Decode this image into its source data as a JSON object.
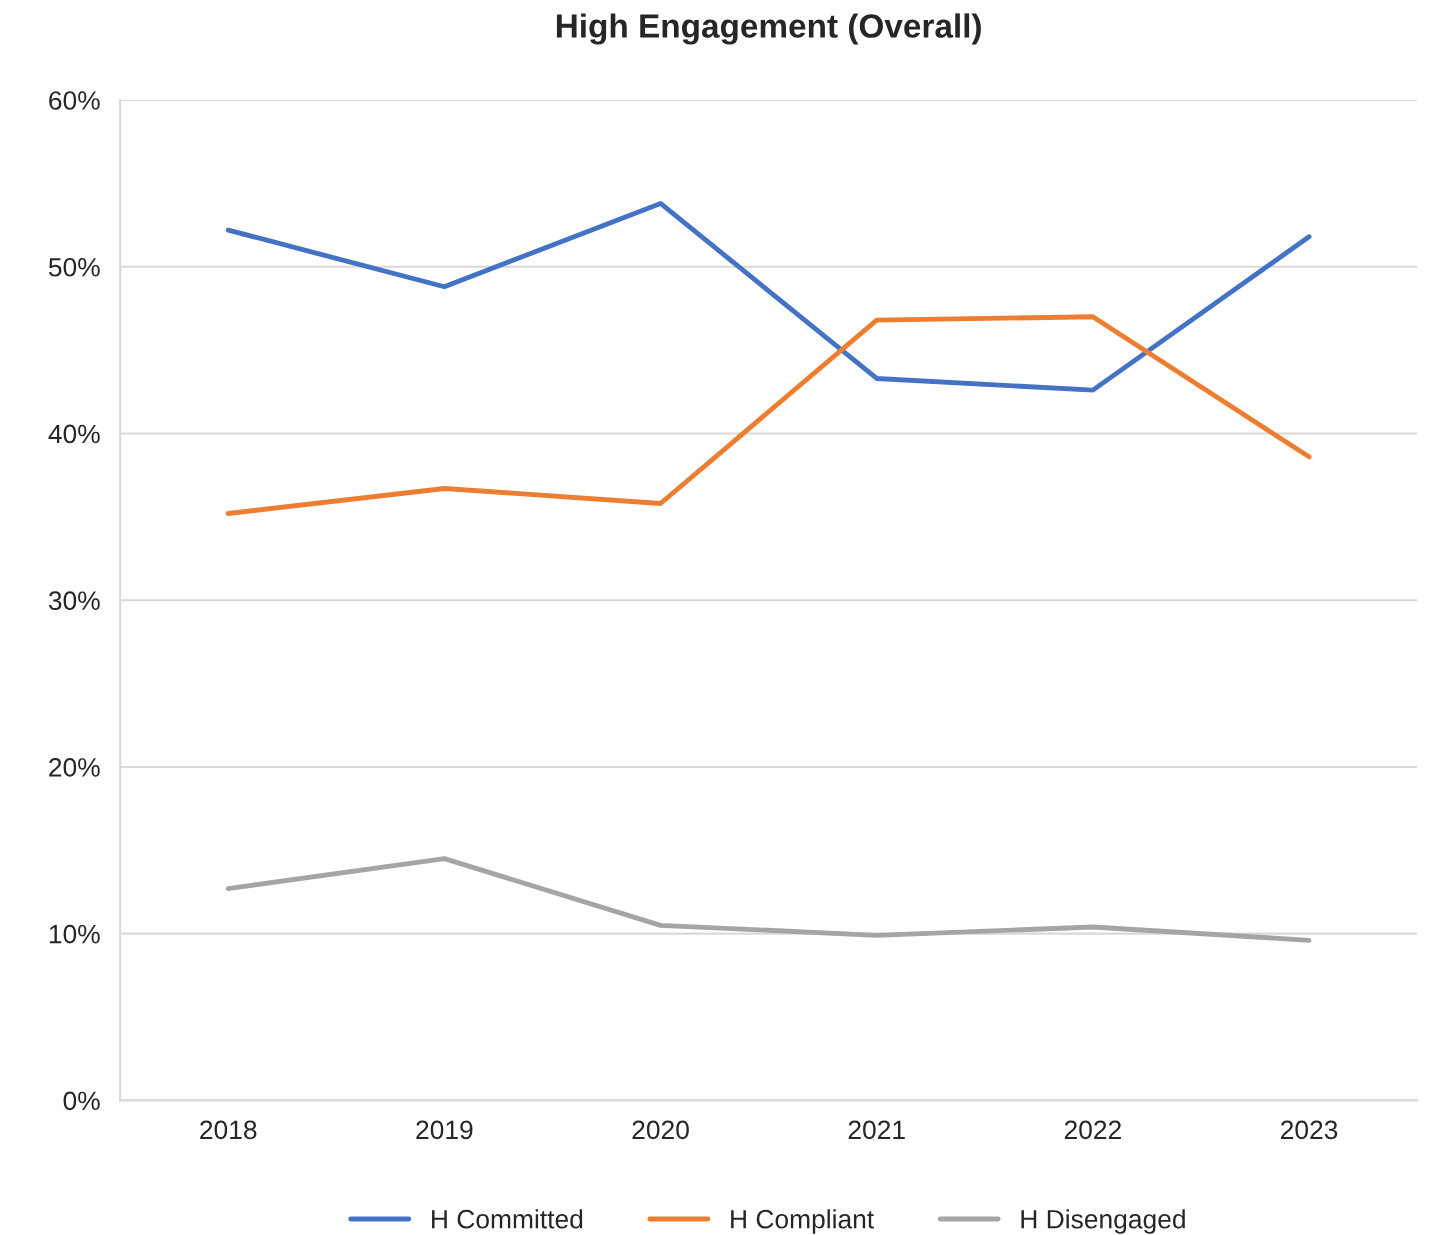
{
  "chart_data": {
    "type": "line",
    "title": "High Engagement (Overall)",
    "categories": [
      "2018",
      "2019",
      "2020",
      "2021",
      "2022",
      "2023"
    ],
    "series": [
      {
        "name": "H Committed",
        "color": "#4472c4",
        "values": [
          52.2,
          48.8,
          53.8,
          43.3,
          42.6,
          51.8
        ]
      },
      {
        "name": "H Compliant",
        "color": "#ed7d31",
        "values": [
          35.2,
          36.7,
          35.8,
          46.8,
          47.0,
          38.6
        ]
      },
      {
        "name": "H Disengaged",
        "color": "#a5a5a5",
        "values": [
          12.7,
          14.5,
          10.5,
          9.9,
          10.4,
          9.6
        ]
      }
    ],
    "ylim": [
      0,
      60
    ],
    "yticks": [
      {
        "value": 0,
        "label": "0%"
      },
      {
        "value": 10,
        "label": "10%"
      },
      {
        "value": 20,
        "label": "20%"
      },
      {
        "value": 30,
        "label": "30%"
      },
      {
        "value": 40,
        "label": "40%"
      },
      {
        "value": 50,
        "label": "50%"
      },
      {
        "value": 60,
        "label": "60%"
      }
    ],
    "grid": "y",
    "legend": "bottom",
    "marker": "none",
    "line_style": "solid"
  }
}
